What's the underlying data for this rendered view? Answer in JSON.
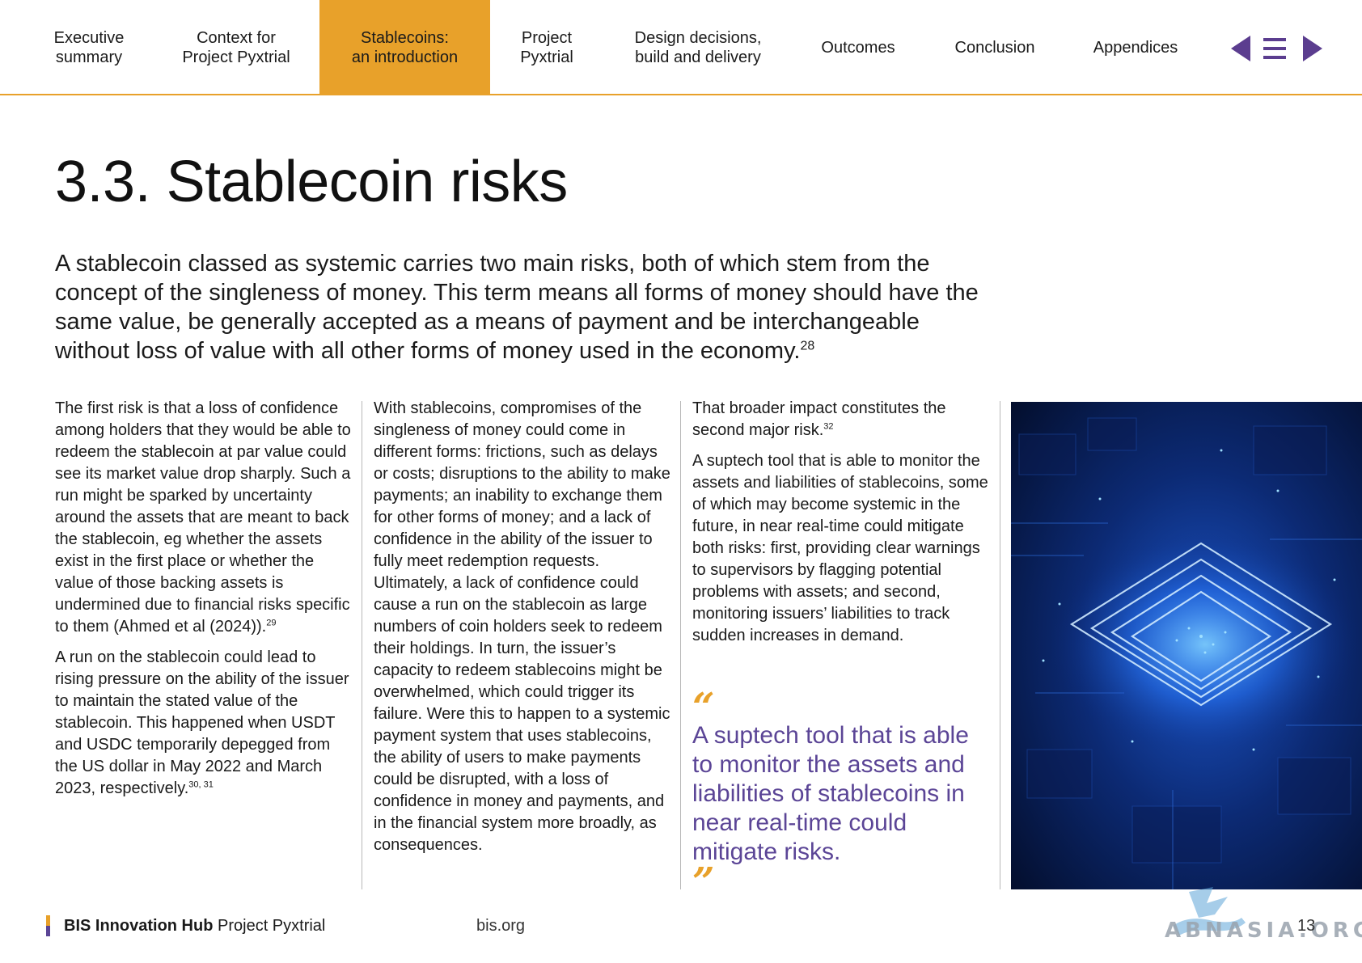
{
  "nav": {
    "tabs": [
      {
        "line1": "Executive",
        "line2": "summary"
      },
      {
        "line1": "Context for",
        "line2": "Project Pyxtrial"
      },
      {
        "line1": "Stablecoins:",
        "line2": "an introduction"
      },
      {
        "line1": "Project",
        "line2": "Pyxtrial"
      },
      {
        "line1": "Design decisions,",
        "line2": "build and delivery"
      },
      {
        "line1": "Outcomes",
        "line2": ""
      },
      {
        "line1": "Conclusion",
        "line2": ""
      },
      {
        "line1": "Appendices",
        "line2": ""
      }
    ],
    "active_index": 2,
    "controls": [
      "previous-icon",
      "menu-icon",
      "next-icon"
    ]
  },
  "title": "3.3. Stablecoin risks",
  "lead": {
    "text": "A stablecoin classed as systemic carries two main risks, both of which stem from the concept of the singleness of money. This term means all forms of money should have the same value, be generally accepted as a means of payment and be interchangeable without loss of value with all other forms of money used in the economy.",
    "ref": "28"
  },
  "col1": {
    "p1": "The first risk is that a loss of confidence among holders that they would be able to redeem the stablecoin at par value could see its market value drop sharply. Such a run might be sparked by uncertainty around the assets that are meant to back the stablecoin, eg whether the assets exist in the first place or whether the value of those backing assets is undermined due to financial risks specific to them (Ahmed et al (2024)).",
    "p1_ref": "29",
    "p2": "A run on the stablecoin could lead to rising pressure on the ability of the issuer to maintain the stated value of the stablecoin. This happened when USDT and USDC temporarily depegged from the US dollar in May 2022 and March 2023, respectively.",
    "p2_ref": "30, 31"
  },
  "col2": {
    "p1": "With stablecoins, compromises of the singleness of money could come in different forms: frictions, such as delays or costs; disruptions to the ability to make payments; an inability to exchange them for other forms of money; and a lack of confidence in the ability of the issuer to fully meet redemption requests. Ultimately, a lack of confidence could cause a run on the stablecoin as large numbers of coin holders seek to redeem their holdings. In turn, the issuer’s capacity to redeem stablecoins might be overwhelmed, which could trigger its failure. Were this to happen to a systemic payment system that uses stablecoins, the ability of users to make payments could be disrupted, with a loss of confidence in money and payments, and in the financial system more broadly, as consequences."
  },
  "col3": {
    "p1": "That broader impact constitutes the second major risk.",
    "p1_ref": "32",
    "p2": "A suptech tool that is able to monitor the assets and liabilities of stablecoins, some of which may become systemic in the future, in near real-time could mitigate both risks: first, providing clear warnings to supervisors by flagging potential problems with assets; and second, monitoring issuers’ liabilities to track sudden increases in demand."
  },
  "pullquote": {
    "open": "“",
    "text": "A suptech tool that is able to monitor the assets and liabilities of stablecoins in near real-time could mitigate risks.",
    "close": "”"
  },
  "footer": {
    "brand_bold": "BIS Innovation Hub",
    "brand_rest": "Project Pyxtrial",
    "url": "bis.org",
    "page": "13"
  },
  "watermark": "ABNASIA.ORG",
  "colors": {
    "accent_orange": "#e8a12a",
    "accent_purple": "#5b4596",
    "nav_icon": "#5b3d8f"
  }
}
